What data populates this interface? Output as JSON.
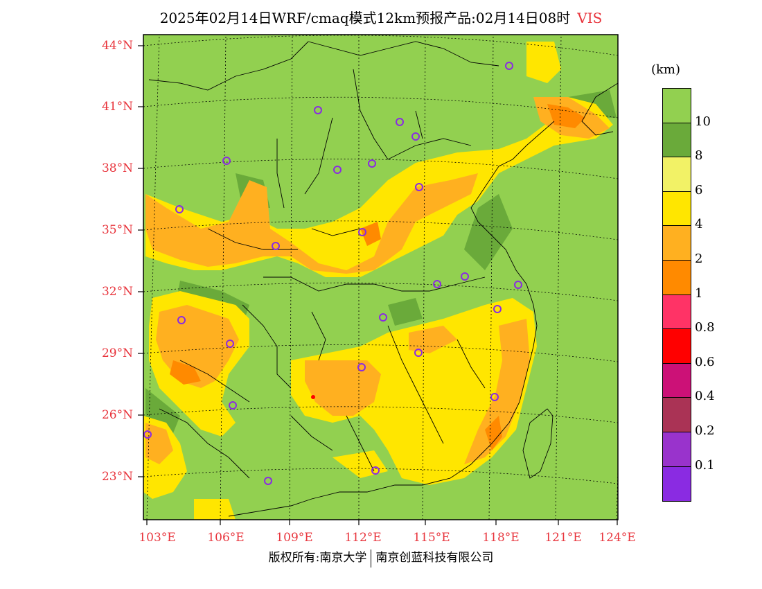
{
  "title": {
    "main": "2025年02月14日WRF/cmaq模式12km预报产品:02月14日08时",
    "variable": "VIS"
  },
  "map": {
    "lat_ticks": [
      "44°N",
      "41°N",
      "38°N",
      "35°N",
      "32°N",
      "29°N",
      "26°N",
      "23°N"
    ],
    "lon_ticks": [
      "103°E",
      "106°E",
      "109°E",
      "112°E",
      "115°E",
      "118°E",
      "121°E",
      "124°E"
    ],
    "background_color": "#92d050"
  },
  "colorbar": {
    "unit": "(km)",
    "labels": [
      "10",
      "8",
      "6",
      "4",
      "2",
      "1",
      "0.8",
      "0.6",
      "0.4",
      "0.2",
      "0.1"
    ],
    "colors": [
      "#92d050",
      "#6aaa3a",
      "#f2f266",
      "#ffe600",
      "#ffb020",
      "#ff8a00",
      "#ff3366",
      "#ff0000",
      "#cc1177",
      "#aa3355",
      "#9933cc",
      "#8a2be2"
    ]
  },
  "footer": {
    "left": "版权所有:南京大学",
    "right": "南京创蓝科技有限公司"
  }
}
